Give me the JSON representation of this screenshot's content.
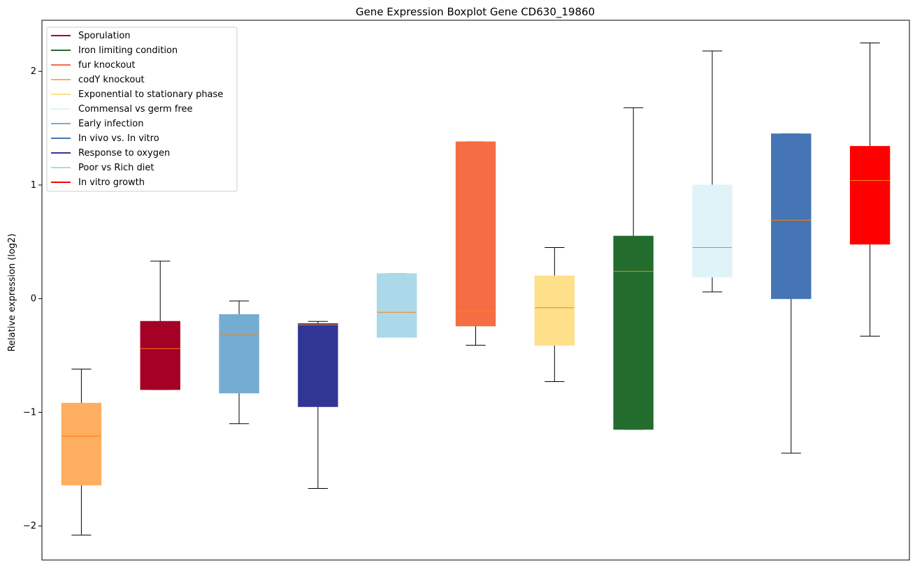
{
  "chart_data": {
    "type": "boxplot",
    "title": "Gene Expression Boxplot Gene CD630_19860",
    "xlabel": "",
    "ylabel": "Relative expression (log2)",
    "ylim": [
      -2.3,
      2.45
    ],
    "yticks": [
      -2,
      -1,
      0,
      1,
      2
    ],
    "ytick_labels": [
      "−2",
      "−1",
      "0",
      "1",
      "2"
    ],
    "grid": false,
    "legend_position": "top-left",
    "median_color": "#ff7f0e",
    "whisker_color": "#000000",
    "legend": [
      {
        "label": "Sporulation",
        "color": "#a50026"
      },
      {
        "label": "Iron limiting condition",
        "color": "#226d2e"
      },
      {
        "label": "fur knockout",
        "color": "#f46d43"
      },
      {
        "label": "codY knockout",
        "color": "#fdae61"
      },
      {
        "label": "Exponential to stationary phase",
        "color": "#fee08b"
      },
      {
        "label": "Commensal vs germ free",
        "color": "#e0f3f8"
      },
      {
        "label": "Early infection",
        "color": "#74add1"
      },
      {
        "label": "In vivo vs. In vitro",
        "color": "#4575b4"
      },
      {
        "label": "Response to oxygen",
        "color": "#313695"
      },
      {
        "label": "Poor vs Rich diet",
        "color": "#abd9e9"
      },
      {
        "label": "In vitro growth",
        "color": "#ff0000"
      }
    ],
    "boxes": [
      {
        "label": "codY knockout",
        "color": "#fdae61",
        "whislo": -2.08,
        "q1": -1.64,
        "med": -1.21,
        "q3": -0.92,
        "whishi": -0.62
      },
      {
        "label": "Sporulation",
        "color": "#a50026",
        "whislo": -0.8,
        "q1": -0.8,
        "med": -0.44,
        "q3": -0.2,
        "whishi": 0.33
      },
      {
        "label": "Early infection",
        "color": "#74add1",
        "whislo": -1.1,
        "q1": -0.83,
        "med": -0.32,
        "q3": -0.14,
        "whishi": -0.02
      },
      {
        "label": "Response to oxygen",
        "color": "#313695",
        "whislo": -1.67,
        "q1": -0.95,
        "med": -0.23,
        "q3": -0.22,
        "whishi": -0.2
      },
      {
        "label": "Poor vs Rich diet",
        "color": "#abd9e9",
        "whislo": -0.34,
        "q1": -0.34,
        "med": -0.12,
        "q3": 0.22,
        "whishi": 0.22
      },
      {
        "label": "fur knockout",
        "color": "#f46d43",
        "whislo": -0.41,
        "q1": -0.24,
        "med": -0.11,
        "q3": 1.38,
        "whishi": 1.38
      },
      {
        "label": "Exponential to stationary phase",
        "color": "#fee08b",
        "whislo": -0.73,
        "q1": -0.41,
        "med": -0.08,
        "q3": 0.2,
        "whishi": 0.45
      },
      {
        "label": "Iron limiting condition",
        "color": "#226d2e",
        "whislo": -1.15,
        "q1": -1.15,
        "med": 0.24,
        "q3": 0.55,
        "whishi": 1.68
      },
      {
        "label": "Commensal vs germ free",
        "color": "#e0f3f8",
        "whislo": 0.06,
        "q1": 0.19,
        "med": 0.45,
        "q3": 1.0,
        "whishi": 2.18
      },
      {
        "label": "In vivo vs. In vitro",
        "color": "#4575b4",
        "whislo": -1.36,
        "q1": 0.0,
        "med": 0.69,
        "q3": 1.45,
        "whishi": 1.45
      },
      {
        "label": "In vitro growth",
        "color": "#ff0000",
        "whislo": -0.33,
        "q1": 0.48,
        "med": 1.04,
        "q3": 1.34,
        "whishi": 2.25
      }
    ]
  }
}
